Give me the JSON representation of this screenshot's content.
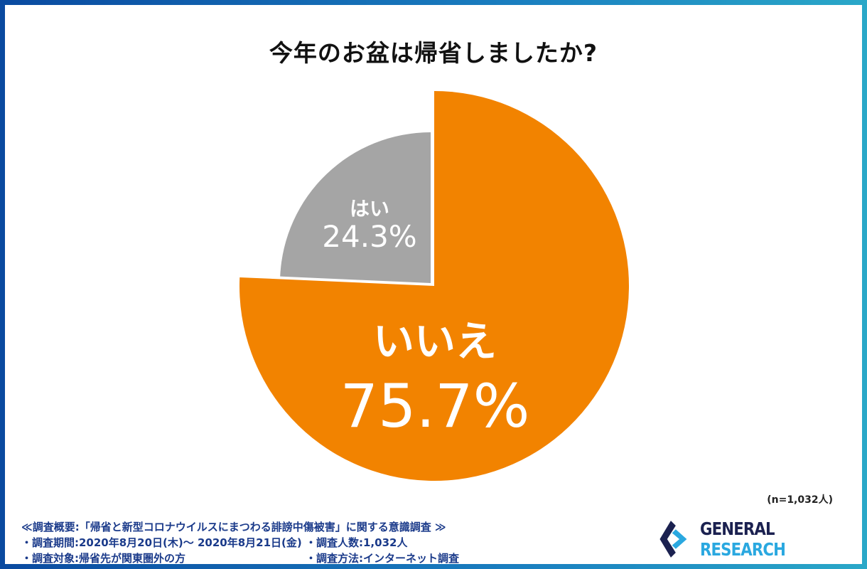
{
  "chart_data": {
    "type": "pie",
    "title": "今年のお盆は帰省しましたか?",
    "slices": [
      {
        "label": "いいえ",
        "value": 75.7,
        "value_label": "75.7%",
        "color": "#f28300"
      },
      {
        "label": "はい",
        "value": 24.3,
        "value_label": "24.3%",
        "color": "#a5a5a5"
      }
    ],
    "sample_note": "(n=1,032人)"
  },
  "footer": {
    "heading": "≪調査概要:「帰省と新型コロナウイルスにまつわる誹謗中傷被害」に関する意識調査 ≫",
    "period": "・調査期間:2020年8月20日(木)〜 2020年8月21日(金)",
    "count": "・調査人数:1,032人",
    "target": "・調査対象:帰省先が関東圏外の方",
    "method": "・調査方法:インターネット調査"
  },
  "logo": {
    "text_dark": "GENERAL",
    "text_light": "RESEARCH",
    "colors": {
      "dark": "#1b2150",
      "light": "#2aa8e0"
    }
  }
}
